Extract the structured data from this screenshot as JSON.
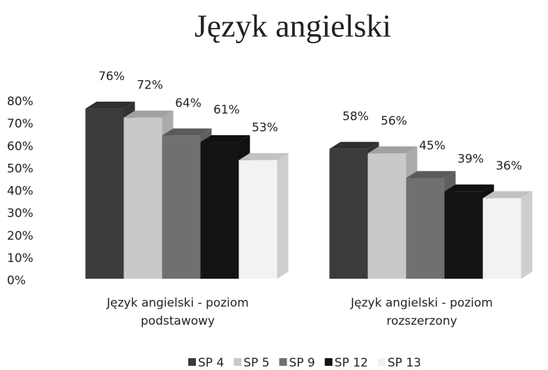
{
  "chart_data": {
    "type": "bar",
    "title": "Język angielski",
    "categories": [
      "Język angielski - poziom podstawowy",
      "Język angielski - poziom rozszerzony"
    ],
    "series": [
      {
        "name": "SP 4",
        "color": "#3b3b3b",
        "values": [
          76,
          58
        ],
        "value_labels": [
          "76%",
          "58%"
        ]
      },
      {
        "name": "SP 5",
        "color": "#c9c9c9",
        "values": [
          72,
          56
        ],
        "value_labels": [
          "72%",
          "56%"
        ]
      },
      {
        "name": "SP 9",
        "color": "#707070",
        "values": [
          64,
          45
        ],
        "value_labels": [
          "64%",
          "45%"
        ]
      },
      {
        "name": "SP 12",
        "color": "#141414",
        "values": [
          61,
          39
        ],
        "value_labels": [
          "61%",
          "39%"
        ]
      },
      {
        "name": "SP 13",
        "color": "#f2f2f2",
        "values": [
          53,
          36
        ],
        "value_labels": [
          "53%",
          "36%"
        ]
      }
    ],
    "ylim": [
      0,
      80
    ],
    "yticks": [
      {
        "value": 0,
        "label": "0%"
      },
      {
        "value": 10,
        "label": "10%"
      },
      {
        "value": 20,
        "label": "20%"
      },
      {
        "value": 30,
        "label": "30%"
      },
      {
        "value": 40,
        "label": "40%"
      },
      {
        "value": 50,
        "label": "50%"
      },
      {
        "value": 60,
        "label": "60%"
      },
      {
        "value": 70,
        "label": "70%"
      },
      {
        "value": 80,
        "label": "80%"
      }
    ],
    "legend": "bottom"
  }
}
